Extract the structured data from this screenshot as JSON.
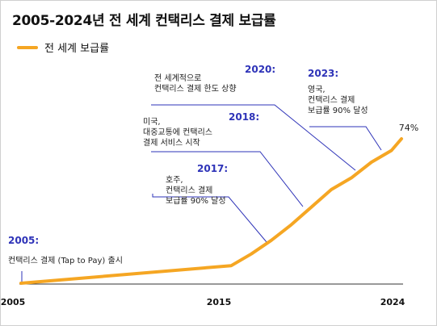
{
  "title": "2005-2024년 전 세계 컨택리스 결제 보급률",
  "colors": {
    "line": "#f5a623",
    "accent": "#2e33b8",
    "axis": "#333333"
  },
  "chart_data": {
    "type": "line",
    "title": "2005-2024년 전 세계 컨택리스 결제 보급률",
    "series": [
      {
        "name": "전 세계 보급률",
        "x": [
          2005,
          2015.5,
          2016.5,
          2017.5,
          2018.5,
          2019.5,
          2020.5,
          2021.5,
          2022.5,
          2023.5,
          2024
        ],
        "values": [
          0,
          9,
          15,
          22,
          30,
          39,
          48,
          54,
          62,
          68,
          74
        ]
      }
    ],
    "end_label": "74%",
    "xlim": [
      2005,
      2024
    ],
    "ylim": [
      0,
      74
    ],
    "x_ticks": [
      "2005",
      "2015",
      "2024"
    ],
    "xlabel": "",
    "ylabel": "",
    "grid": false,
    "legend": "top-left",
    "annotations": [
      {
        "year": "2005:",
        "lines": [
          "컨택리스 결제 (Tap to Pay) 출시"
        ]
      },
      {
        "year": "2017:",
        "lines": [
          "호주,",
          "컨택리스 결제",
          "보급률 90% 달성"
        ]
      },
      {
        "year": "2018:",
        "lines": [
          "미국,",
          "대중교통에 컨택리스",
          "결제 서비스 시작"
        ]
      },
      {
        "year": "2020:",
        "lines": [
          "전 세계적으로",
          "컨택리스 결제 한도 상향"
        ]
      },
      {
        "year": "2023:",
        "lines": [
          "영국,",
          "컨택리스 결제",
          "보급률 90% 달성"
        ]
      }
    ]
  }
}
